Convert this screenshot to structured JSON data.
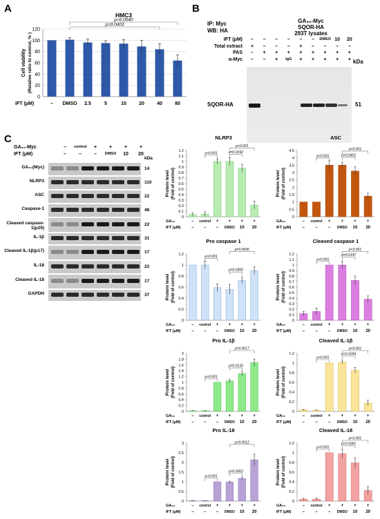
{
  "panels": {
    "A": "A",
    "B": "B",
    "C": "C"
  },
  "panelA": {
    "chart_data": {
      "type": "bar",
      "title": "HMC3",
      "ylabel": "Cell viability (Relative ratio to control, % )",
      "ylabel_line1": "Cell viability",
      "ylabel_line2": "(Relative ratio to control, % )",
      "xlabel": "IFT (μM)",
      "categories": [
        "–",
        "DMSO",
        "2.5",
        "5",
        "10",
        "20",
        "40",
        "80"
      ],
      "values": [
        100,
        101,
        96,
        95,
        94,
        89,
        84,
        64
      ],
      "errors": [
        0,
        4,
        6,
        4,
        7,
        11,
        10,
        10
      ],
      "ylim": [
        0,
        120
      ],
      "yticks": [
        "0",
        "20",
        "40",
        "60",
        "80",
        "100",
        "120"
      ],
      "pvalues": [
        "p=0.0040",
        "p=0.0403"
      ],
      "color": "#2e58a8"
    }
  },
  "panelB": {
    "ip": "IP: Myc",
    "wb": "WB: HA",
    "header": [
      "GA₅₀-Myc",
      "SQOR-HA",
      "293T lysates"
    ],
    "rows": [
      {
        "label": "IFT (μM)",
        "values": [
          "–",
          "–",
          "–",
          "–",
          "–",
          "–",
          "DMSO",
          "10",
          "20"
        ]
      },
      {
        "label": "Total extract",
        "values": [
          "+",
          "–",
          "–",
          "–",
          "+",
          "–",
          "–",
          "–",
          "–"
        ]
      },
      {
        "label": "PAS",
        "values": [
          "–",
          "+",
          "+",
          "+",
          "+",
          "+",
          "+",
          "+",
          "+"
        ]
      },
      {
        "label": "α-Myc",
        "values": [
          "–",
          "–",
          "+",
          "IgG",
          "+",
          "+",
          "+",
          "+",
          "+"
        ]
      }
    ],
    "kda_unit": "kDa",
    "band_label": "SQOR-HA",
    "band_kda": "51"
  },
  "panelC": {
    "blot": {
      "header_rows": [
        {
          "label": "GA₅₀-Myc",
          "values": [
            "–",
            "control",
            "+",
            "+",
            "+",
            "+"
          ]
        },
        {
          "label": "IFT (μM)",
          "values": [
            "–",
            "–",
            "–",
            "DMSO",
            "10",
            "20"
          ]
        }
      ],
      "kda_unit": "kDa",
      "bands": [
        {
          "label": "GA₅₀(Myc)",
          "kda": "14"
        },
        {
          "label": "NLRP3",
          "kda": "110"
        },
        {
          "label": "ASC",
          "kda": "22"
        },
        {
          "label": "Caspase-1",
          "kda": "48"
        },
        {
          "label": "Cleaved caspase-1(p20)",
          "kda": "22"
        },
        {
          "label": "IL-1β",
          "kda": "31"
        },
        {
          "label": "Cleaved IL-1β(p17)",
          "kda": "17"
        },
        {
          "label": "IL-18",
          "kda": "22"
        },
        {
          "label": "Cleaved IL-18",
          "kda": "17"
        },
        {
          "label": "GAPDH",
          "kda": "37"
        }
      ]
    },
    "common": {
      "ylabel_line1": "Protein level",
      "ylabel_line2": "(Fold of control)",
      "categories": [
        "–",
        "control",
        "+",
        "+",
        "+",
        "+"
      ],
      "ift_row": [
        "–",
        "–",
        "–",
        "DMSO",
        "10",
        "20"
      ],
      "ga_label": "GA₅₀",
      "ift_label": "IFT (μM)"
    },
    "chart_data": [
      {
        "type": "bar",
        "title": "NLRP3",
        "values": [
          0.04,
          0.05,
          1.0,
          1.0,
          0.88,
          0.21
        ],
        "errors": [
          0.03,
          0.04,
          0.05,
          0.07,
          0.07,
          0.07
        ],
        "ylim": [
          0,
          1.2
        ],
        "yticks": [
          "0",
          "0.1",
          "0.2",
          "0.3",
          "0.4",
          "0.5",
          "0.6",
          "0.7",
          "0.8",
          "0.9",
          "1",
          "1.1",
          "1.2"
        ],
        "pvalues": [
          "p<0.001",
          "p=0.0192",
          "p<0.001"
        ],
        "color": "#b8ecb0",
        "edge": "#6cc76a"
      },
      {
        "type": "bar",
        "title": "ASC",
        "values": [
          1.0,
          1.0,
          3.5,
          3.5,
          3.1,
          1.4
        ],
        "errors": [
          0,
          0,
          0.3,
          0.2,
          0.3,
          0.2
        ],
        "ylim": [
          0,
          4.5
        ],
        "yticks": [
          "0",
          "0.5",
          "1",
          "1.5",
          "2",
          "2.5",
          "3",
          "3.5",
          "4",
          "4.5"
        ],
        "pvalues": [
          "p<0.001",
          "p=0.0401",
          "p<0.001"
        ],
        "color": "#c3560e",
        "edge": "#9a4009"
      },
      {
        "type": "bar",
        "title": "Pro caspase 1",
        "values": [
          1.0,
          1.0,
          0.59,
          0.56,
          0.72,
          0.9
        ],
        "errors": [
          0,
          0.07,
          0.07,
          0.09,
          0.06,
          0.07
        ],
        "ylim": [
          0,
          1.2
        ],
        "yticks": [
          "0",
          "0.2",
          "0.4",
          "0.6",
          "0.8",
          "1",
          "1.2"
        ],
        "pvalues": [
          "p<0.001",
          "p=0.0300",
          "p=0.0030"
        ],
        "color": "#cfe2f8",
        "edge": "#7aa4d6"
      },
      {
        "type": "bar",
        "title": "Cleaved caspase 1",
        "values": [
          0.12,
          0.16,
          1.0,
          1.0,
          0.72,
          0.38
        ],
        "errors": [
          0.04,
          0.06,
          0.0,
          0.07,
          0.08,
          0.06
        ],
        "ylim": [
          0,
          1.2
        ],
        "yticks": [
          "0",
          "0.1",
          "0.2",
          "0.3",
          "0.4",
          "0.5",
          "0.6",
          "0.7",
          "0.8",
          "0.9",
          "1",
          "1.1",
          "1.2"
        ],
        "pvalues": [
          "p<0.001",
          "p=0.0147",
          "p<0.001"
        ],
        "color": "#da7fe0",
        "edge": "#b04fb9"
      },
      {
        "type": "bar",
        "title": "Pro IL-1β",
        "values": [
          0.02,
          0.02,
          1.0,
          1.05,
          1.3,
          1.68
        ],
        "errors": [
          0.01,
          0.01,
          0.0,
          0.06,
          0.08,
          0.12
        ],
        "ylim": [
          0,
          2
        ],
        "yticks": [
          "0",
          "0.2",
          "0.4",
          "0.6",
          "0.8",
          "1",
          "1.2",
          "1.4",
          "1.6",
          "1.8",
          "2"
        ],
        "pvalues": [
          "p<0.001",
          "p=0.0133",
          "p=0.0017"
        ],
        "color": "#8ee98a",
        "edge": "#4fbf4c"
      },
      {
        "type": "bar",
        "title": "Cleaved IL-1β",
        "values": [
          0.03,
          0.02,
          1.0,
          1.02,
          0.85,
          0.17
        ],
        "errors": [
          0.01,
          0.01,
          0.0,
          0.04,
          0.06,
          0.06
        ],
        "ylim": [
          0,
          1.2
        ],
        "yticks": [
          "0",
          "0.2",
          "0.4",
          "0.6",
          "0.8",
          "1",
          "1.2"
        ],
        "pvalues": [
          "p<0.001",
          "p=0.0094",
          "p<0.001"
        ],
        "color": "#fbe59a",
        "edge": "#cfb24a"
      },
      {
        "type": "bar",
        "title": "Pro IL-18",
        "values": [
          0.02,
          0.02,
          1.0,
          0.98,
          1.17,
          2.13
        ],
        "errors": [
          0.01,
          0.01,
          0.0,
          0.05,
          0.08,
          0.3
        ],
        "ylim": [
          0,
          3
        ],
        "yticks": [
          "0",
          "0.5",
          "1",
          "1.5",
          "2",
          "2.5",
          "3"
        ],
        "pvalues": [
          "p<0.001",
          "p=0.0063",
          "p=0.0012"
        ],
        "color": "#b9a3d6",
        "edge": "#8a6fb4"
      },
      {
        "type": "bar",
        "title": "Cleaved IL-18",
        "values": [
          0.04,
          0.04,
          1.0,
          0.98,
          0.79,
          0.22
        ],
        "errors": [
          0.02,
          0.02,
          0.0,
          0.09,
          0.1,
          0.08
        ],
        "ylim": [
          0,
          1.2
        ],
        "yticks": [
          "0",
          "0.2",
          "0.4",
          "0.6",
          "0.8",
          "1",
          "1.2"
        ],
        "pvalues": [
          "p<0.001",
          "p=0.0281",
          "p<0.001"
        ],
        "color": "#f2a2a2",
        "edge": "#d06565"
      }
    ]
  }
}
